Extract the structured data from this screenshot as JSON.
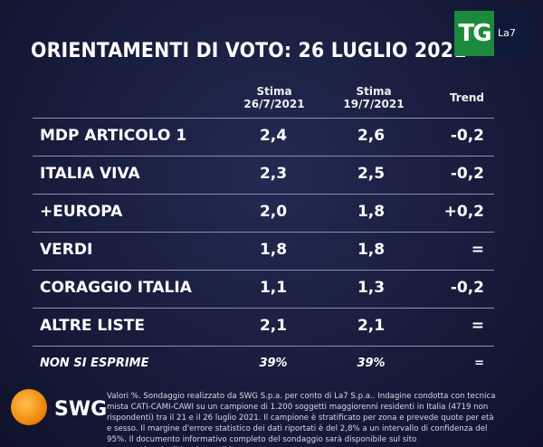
{
  "header": {
    "title": "ORIENTAMENTI DI VOTO: 26 LUGLIO 2021"
  },
  "logo": {
    "tg": "TG",
    "channel": "La7"
  },
  "table": {
    "columns": [
      {
        "line1": "Stima",
        "line2": "26/7/2021"
      },
      {
        "line1": "Stima",
        "line2": "19/7/2021"
      },
      {
        "line1": "Trend"
      }
    ],
    "rows": [
      [
        "MDP ARTICOLO 1",
        "2,4",
        "2,6",
        "-0,2"
      ],
      [
        "ITALIA VIVA",
        "2,3",
        "2,5",
        "-0,2"
      ],
      [
        "+EUROPA",
        "2,0",
        "1,8",
        "+0,2"
      ],
      [
        "VERDI",
        "1,8",
        "1,8",
        "="
      ],
      [
        "CORAGGIO ITALIA",
        "1,1",
        "1,3",
        "-0,2"
      ],
      [
        "ALTRE LISTE",
        "2,1",
        "2,1",
        "="
      ],
      [
        "NON SI ESPRIME",
        "39%",
        "39%",
        "="
      ]
    ]
  },
  "footer": {
    "brand": "SWG",
    "note": "Valori %. Sondaggio realizzato da SWG S.p.a. per conto di La7 S.p.a.. Indagine condotta con tecnica mista CATI-CAMI-CAWI su un campione di 1.200 soggetti maggiorenni residenti in Italia (4719 non rispondenti) tra il 21 e il 26 luglio 2021. Il campione è stratificato per zona e prevede quote per età e sesso. Il margine d'errore statistico dei dati riportati è del 2,8% a un intervallo di confidenza del 95%. Il documento informativo completo del sondaggio sarà disponibile sul sito www.sondaggipoliticoelettorali.it"
  }
}
